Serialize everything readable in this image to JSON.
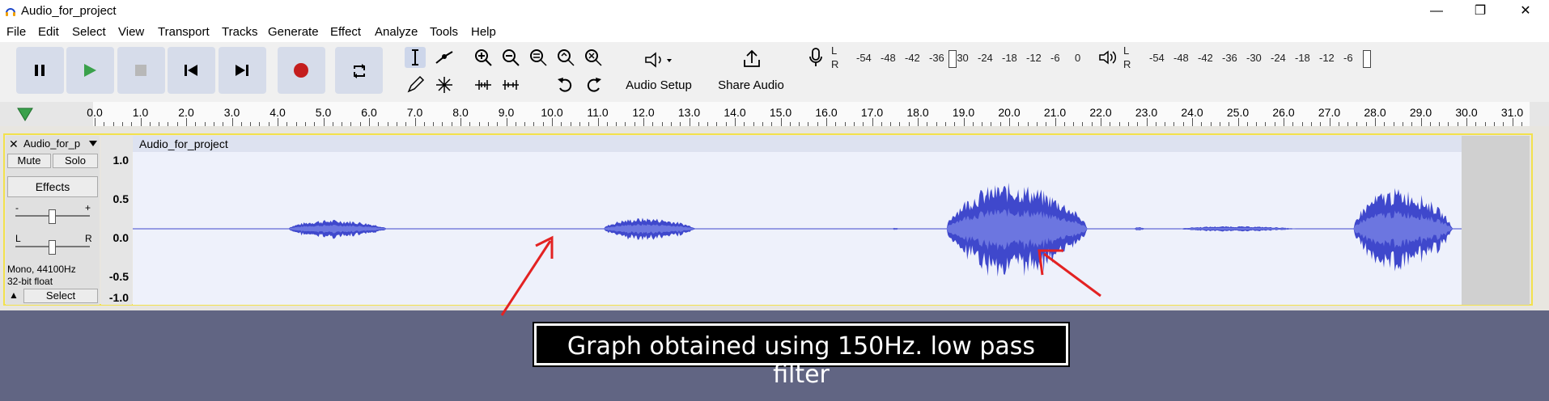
{
  "window": {
    "title": "Audio_for_project",
    "minimize": "—",
    "maximize": "❐",
    "close": "✕"
  },
  "menu": [
    "File",
    "Edit",
    "Select",
    "View",
    "Transport",
    "Tracks",
    "Generate",
    "Effect",
    "Analyze",
    "Tools",
    "Help"
  ],
  "toolbar": {
    "audio_setup": "Audio Setup",
    "share_audio": "Share Audio",
    "record_meter": {
      "label_l": "L",
      "label_r": "R",
      "ticks": [
        "-54",
        "-48",
        "-42",
        "-36",
        "-30",
        "-24",
        "-18",
        "-12",
        "-6",
        "0"
      ]
    },
    "play_meter": {
      "label_l": "L",
      "label_r": "R",
      "ticks": [
        "-54",
        "-48",
        "-42",
        "-36",
        "-30",
        "-24",
        "-18",
        "-12",
        "-6",
        ""
      ]
    }
  },
  "ruler": {
    "ticks": [
      "0.0",
      "1.0",
      "2.0",
      "3.0",
      "4.0",
      "5.0",
      "6.0",
      "7.0",
      "8.0",
      "9.0",
      "10.0",
      "11.0",
      "12.0",
      "13.0",
      "14.0",
      "15.0",
      "16.0",
      "17.0",
      "18.0",
      "19.0",
      "20.0",
      "21.0",
      "22.0",
      "23.0",
      "24.0",
      "25.0",
      "26.0",
      "27.0",
      "28.0",
      "29.0",
      "30.0",
      "31.0"
    ]
  },
  "track": {
    "name": "Audio_for_p",
    "close": "✕",
    "mute": "Mute",
    "solo": "Solo",
    "effects": "Effects",
    "gain_minus": "-",
    "gain_plus": "+",
    "pan_l": "L",
    "pan_r": "R",
    "info_line1": "Mono, 44100Hz",
    "info_line2": "32-bit float",
    "collapse": "▲",
    "select": "Select",
    "clip_name": "Audio_for_project",
    "vruler": [
      "1.0",
      "0.5",
      "0.0",
      "-0.5",
      "-1.0"
    ]
  },
  "waveform": {
    "color": "#3f48cc",
    "duration_s": 30.0,
    "segments": [
      {
        "start": 3.0,
        "end": 5.8,
        "amp": 0.14
      },
      {
        "start": 9.9,
        "end": 12.5,
        "amp": 0.17
      },
      {
        "start": 16.2,
        "end": 16.4,
        "amp": 0.02
      },
      {
        "start": 17.4,
        "end": 21.4,
        "amp": 0.7
      },
      {
        "start": 21.5,
        "end": 21.8,
        "amp": 0.03
      },
      {
        "start": 22.5,
        "end": 25.8,
        "amp": 0.04
      },
      {
        "start": 26.3,
        "end": 29.1,
        "amp": 0.62
      }
    ]
  },
  "caption": "Graph obtained using 150Hz. low pass filter",
  "annotation_color": "#e32222"
}
